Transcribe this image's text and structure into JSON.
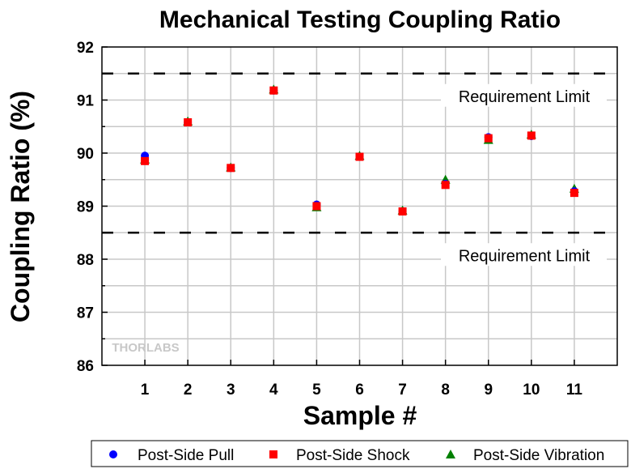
{
  "chart_data": {
    "type": "scatter",
    "title": "Mechanical Testing Coupling Ratio",
    "xlabel": "Sample #",
    "ylabel": "Coupling Ratio (%)",
    "xlim": [
      0,
      12
    ],
    "ylim": [
      86,
      92
    ],
    "x": [
      1,
      2,
      3,
      4,
      5,
      6,
      7,
      8,
      9,
      10,
      11
    ],
    "xticks": [
      "1",
      "2",
      "3",
      "4",
      "5",
      "6",
      "7",
      "8",
      "9",
      "10",
      "11"
    ],
    "yticks": [
      "86",
      "87",
      "88",
      "89",
      "90",
      "91",
      "92"
    ],
    "grid": true,
    "legend_placement": "bottom",
    "series": [
      {
        "name": "Post-Side Pull",
        "color": "#0000ff",
        "marker": "circle",
        "values": [
          89.95,
          90.58,
          89.72,
          91.18,
          89.03,
          89.93,
          88.9,
          89.42,
          90.3,
          90.32,
          89.28
        ]
      },
      {
        "name": "Post-Side Shock",
        "color": "#ff0000",
        "marker": "square",
        "values": [
          89.85,
          90.58,
          89.72,
          91.18,
          89.0,
          89.93,
          88.9,
          89.4,
          90.28,
          90.33,
          89.25
        ]
      },
      {
        "name": "Post-Side Vibration",
        "color": "#008000",
        "marker": "triangle",
        "values": [
          89.88,
          90.6,
          89.73,
          91.2,
          88.98,
          89.95,
          88.92,
          89.5,
          90.25,
          90.35,
          89.33
        ]
      }
    ],
    "annotations": [
      {
        "label": "Requirement Limit",
        "y": 91.5
      },
      {
        "label": "Requirement Limit",
        "y": 88.5
      }
    ],
    "watermark": "THORLABS"
  }
}
